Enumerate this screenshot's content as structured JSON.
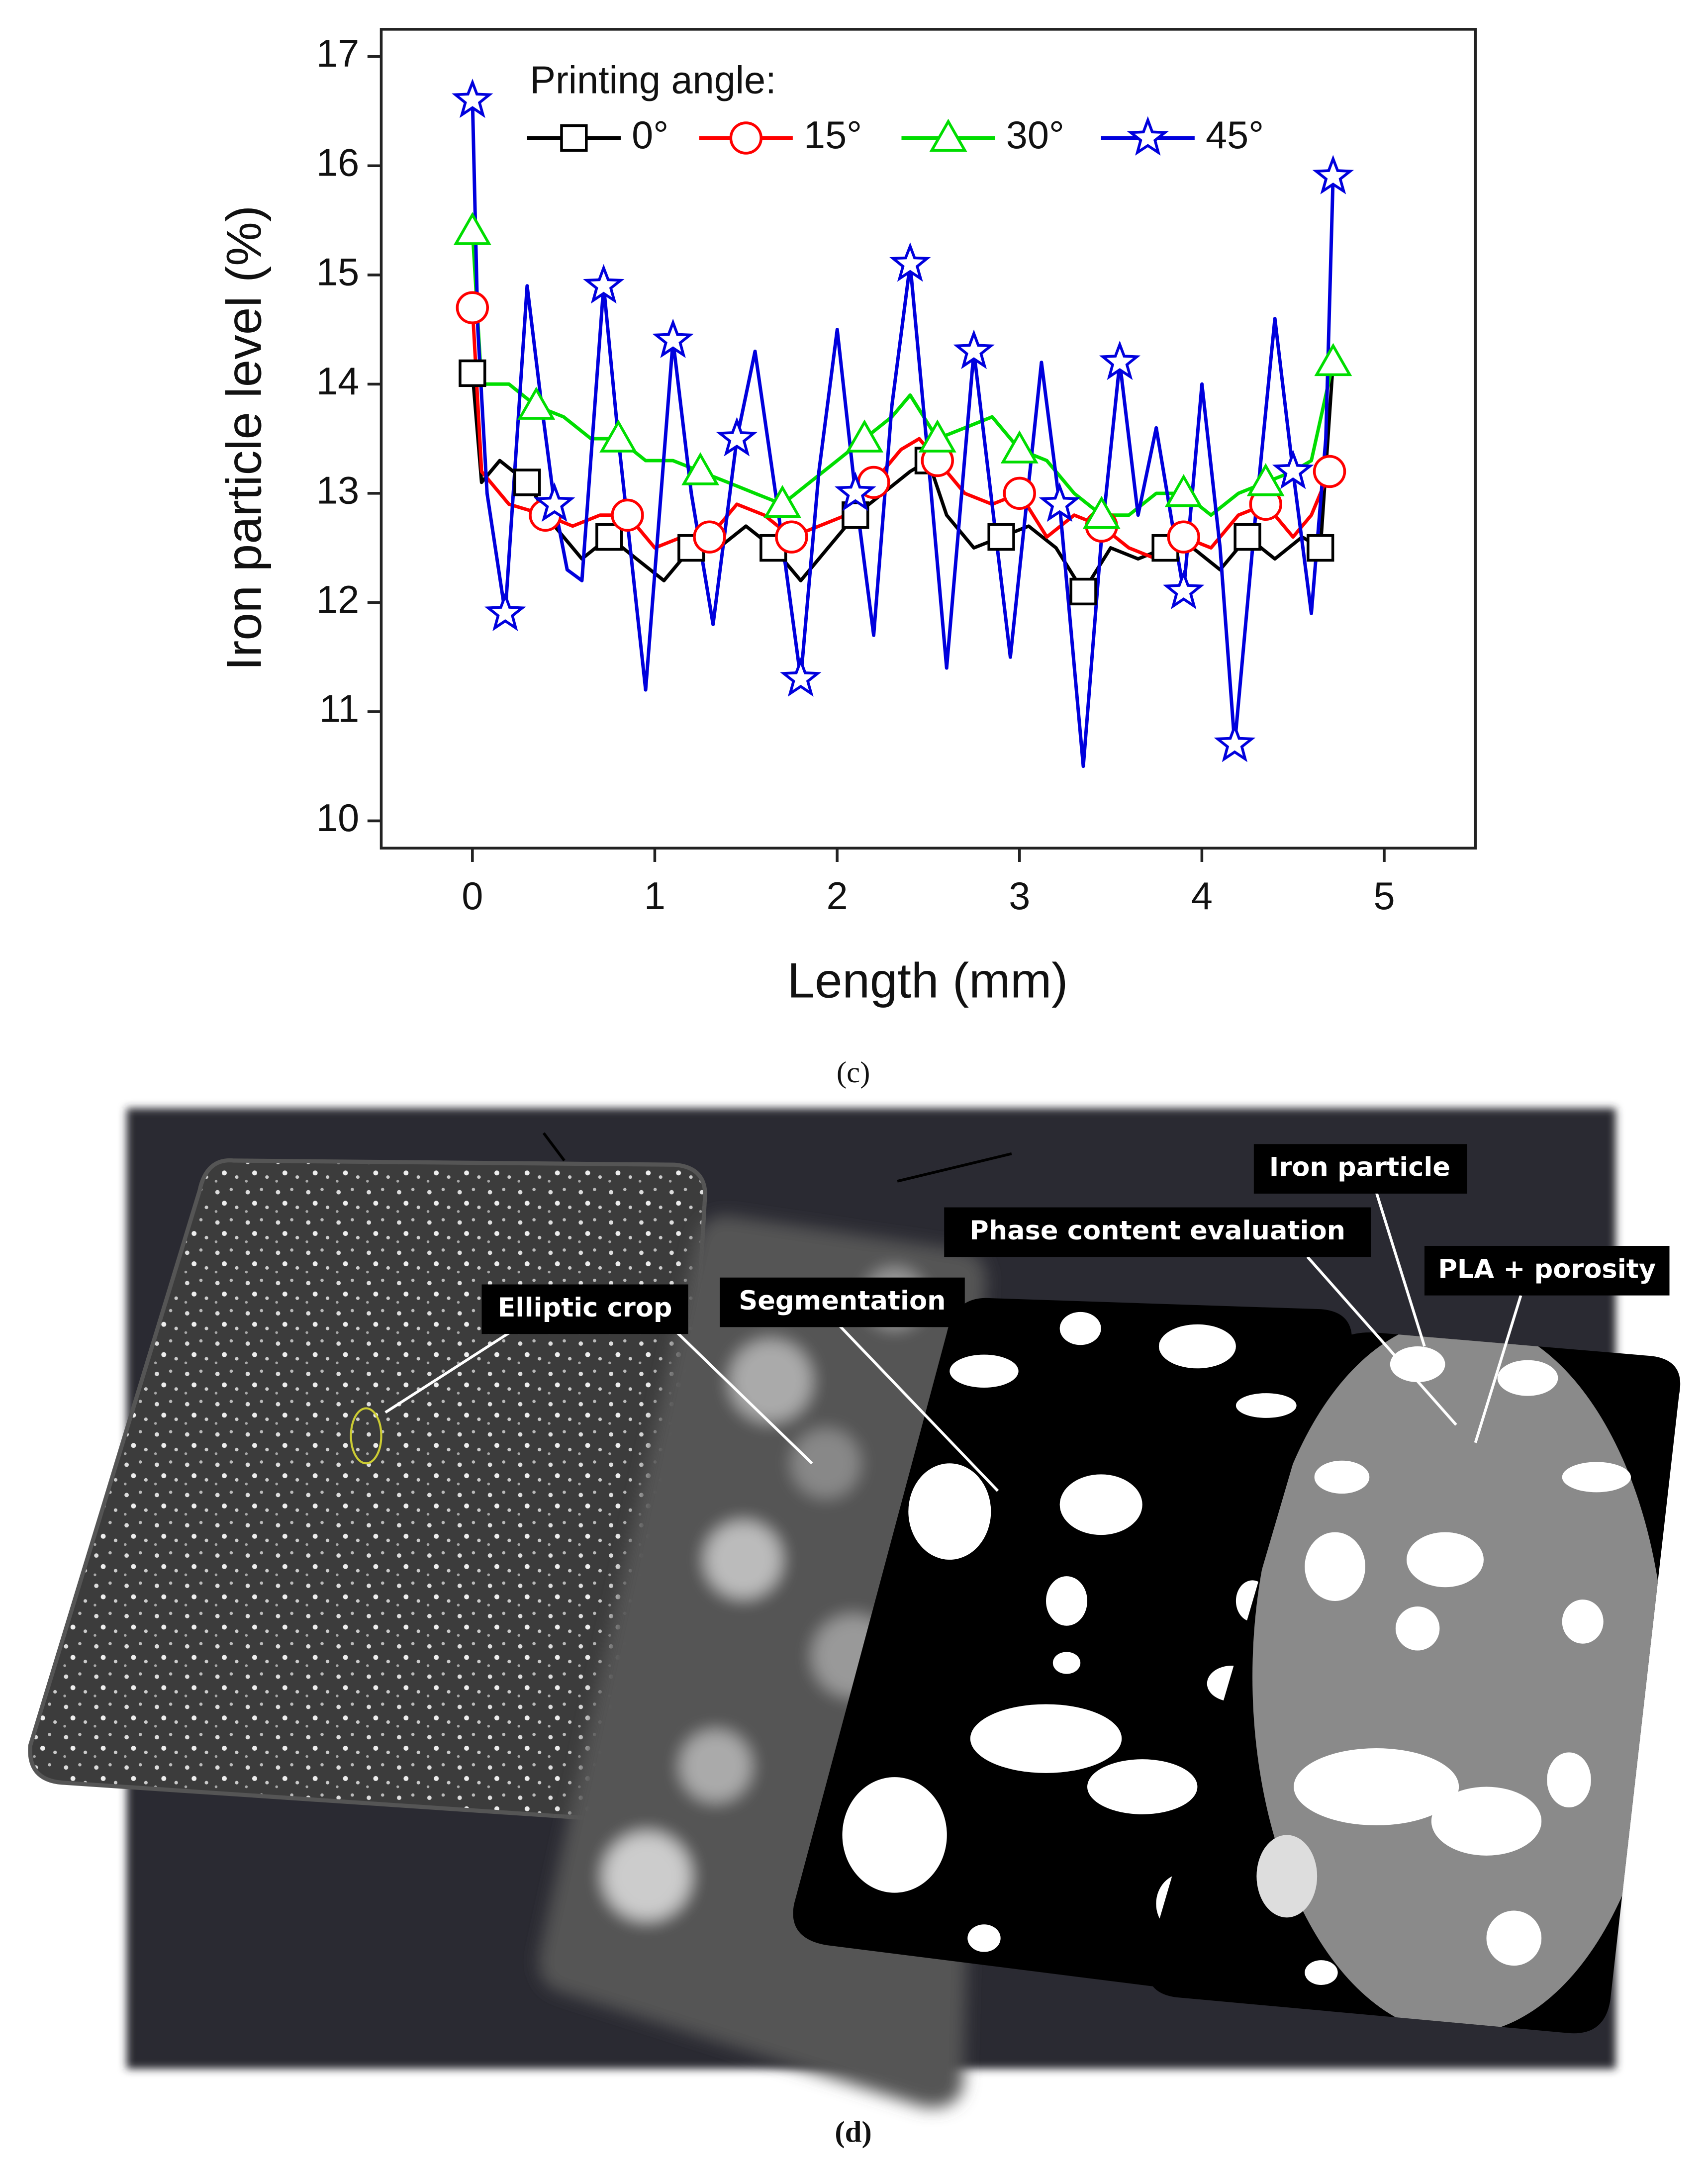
{
  "chart_data": {
    "type": "line",
    "xlabel": "Length (mm)",
    "ylabel": "Iron particle level (%)",
    "legend_title": "Printing angle:",
    "xlim": [
      -0.5,
      5.5
    ],
    "xticks": [
      0,
      1,
      2,
      3,
      4,
      5
    ],
    "ylim": [
      9.75,
      17.25
    ],
    "yticks": [
      10,
      11,
      12,
      13,
      14,
      15,
      16,
      17
    ],
    "legend": "upper left",
    "series": [
      {
        "name": "0°",
        "color": "#000000",
        "marker": "square",
        "x": [
          0,
          0.05,
          0.15,
          0.3,
          0.45,
          0.6,
          0.75,
          0.9,
          1.05,
          1.2,
          1.35,
          1.5,
          1.65,
          1.8,
          1.95,
          2.1,
          2.25,
          2.4,
          2.5,
          2.6,
          2.75,
          2.9,
          3.05,
          3.2,
          3.35,
          3.5,
          3.65,
          3.8,
          3.95,
          4.1,
          4.25,
          4.4,
          4.55,
          4.65,
          4.72
        ],
        "values": [
          14.1,
          13.1,
          13.3,
          13.1,
          12.7,
          12.4,
          12.6,
          12.4,
          12.2,
          12.5,
          12.5,
          12.7,
          12.5,
          12.2,
          12.5,
          12.8,
          13.0,
          13.2,
          13.3,
          12.8,
          12.5,
          12.6,
          12.7,
          12.5,
          12.1,
          12.5,
          12.4,
          12.5,
          12.5,
          12.3,
          12.6,
          12.4,
          12.6,
          12.5,
          14.2
        ]
      },
      {
        "name": "15°",
        "color": "#ff0000",
        "marker": "circle",
        "x": [
          0,
          0.05,
          0.2,
          0.4,
          0.55,
          0.7,
          0.85,
          1.0,
          1.15,
          1.3,
          1.45,
          1.6,
          1.75,
          1.9,
          2.05,
          2.2,
          2.35,
          2.45,
          2.55,
          2.7,
          2.85,
          3.0,
          3.15,
          3.3,
          3.45,
          3.6,
          3.75,
          3.9,
          4.05,
          4.2,
          4.35,
          4.5,
          4.6,
          4.7
        ],
        "values": [
          14.7,
          13.2,
          12.9,
          12.8,
          12.7,
          12.8,
          12.8,
          12.5,
          12.6,
          12.6,
          12.9,
          12.8,
          12.6,
          12.7,
          12.8,
          13.1,
          13.4,
          13.5,
          13.3,
          13.0,
          12.9,
          13.0,
          12.6,
          12.8,
          12.7,
          12.5,
          12.4,
          12.6,
          12.5,
          12.8,
          12.9,
          12.6,
          12.8,
          13.2
        ]
      },
      {
        "name": "30°",
        "color": "#00dd00",
        "marker": "triangle",
        "x": [
          0,
          0.05,
          0.2,
          0.35,
          0.5,
          0.65,
          0.8,
          0.95,
          1.1,
          1.25,
          1.4,
          1.55,
          1.7,
          1.85,
          2.0,
          2.15,
          2.3,
          2.4,
          2.55,
          2.7,
          2.85,
          3.0,
          3.15,
          3.3,
          3.45,
          3.6,
          3.75,
          3.9,
          4.05,
          4.2,
          4.35,
          4.5,
          4.6,
          4.72
        ],
        "values": [
          15.4,
          14.0,
          14.0,
          13.8,
          13.7,
          13.5,
          13.5,
          13.3,
          13.3,
          13.2,
          13.1,
          13.0,
          12.9,
          13.1,
          13.3,
          13.5,
          13.7,
          13.9,
          13.5,
          13.6,
          13.7,
          13.4,
          13.3,
          13.0,
          12.8,
          12.8,
          13.0,
          13.0,
          12.8,
          13.0,
          13.1,
          13.2,
          13.3,
          14.2
        ]
      },
      {
        "name": "45°",
        "color": "#0000dd",
        "marker": "star",
        "x": [
          0,
          0.03,
          0.08,
          0.18,
          0.3,
          0.38,
          0.45,
          0.52,
          0.6,
          0.72,
          0.8,
          0.95,
          1.1,
          1.2,
          1.32,
          1.45,
          1.55,
          1.68,
          1.8,
          1.9,
          2.0,
          2.1,
          2.2,
          2.3,
          2.4,
          2.5,
          2.6,
          2.75,
          2.95,
          3.12,
          3.22,
          3.35,
          3.45,
          3.55,
          3.65,
          3.75,
          3.9,
          4.0,
          4.1,
          4.18,
          4.3,
          4.4,
          4.5,
          4.6,
          4.68,
          4.72
        ],
        "values": [
          16.6,
          14.5,
          13.0,
          11.9,
          14.9,
          13.8,
          12.9,
          12.3,
          12.2,
          14.9,
          13.5,
          11.2,
          14.4,
          13.0,
          11.8,
          13.5,
          14.3,
          12.8,
          11.3,
          13.2,
          14.5,
          13.0,
          11.7,
          13.8,
          15.1,
          13.3,
          11.4,
          14.3,
          11.5,
          14.2,
          12.9,
          10.5,
          12.6,
          14.2,
          12.8,
          13.6,
          12.1,
          14.0,
          12.5,
          10.7,
          12.9,
          14.6,
          13.2,
          11.9,
          13.5,
          15.9
        ]
      }
    ]
  },
  "panel_labels": [
    "(c)",
    "(d)"
  ],
  "figure_d": {
    "labels": [
      "Elliptic crop",
      "Segmentation",
      "Phase content evaluation",
      "Iron particle",
      "PLA + porosity"
    ]
  }
}
